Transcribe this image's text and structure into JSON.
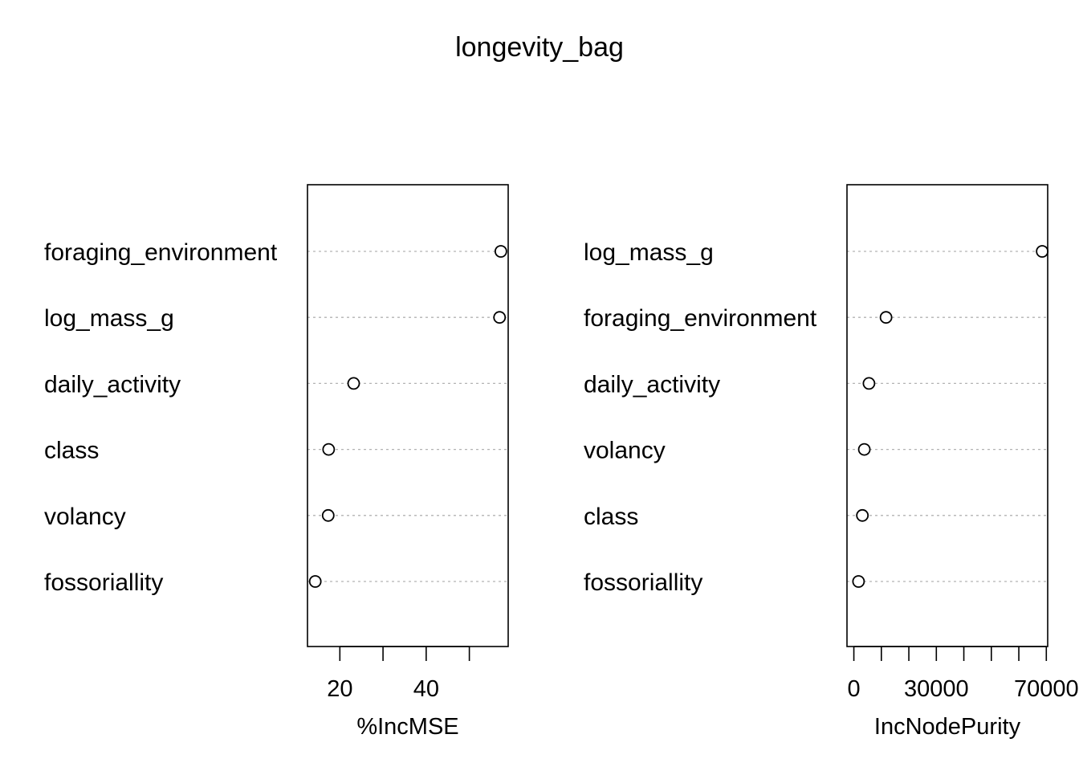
{
  "title": "longevity_bag",
  "chart_data": [
    {
      "type": "scatter",
      "subtype": "dotchart",
      "title": "",
      "xlabel": "%IncMSE",
      "ylabel": "",
      "xlim": [
        12.5,
        59
      ],
      "xticks": [
        20,
        30,
        40,
        50
      ],
      "xtick_labels": [
        "20",
        "",
        "40",
        ""
      ],
      "grid": "dotted horizontal guide lines",
      "categories": [
        "foraging_environment",
        "log_mass_g",
        "daily_activity",
        "class",
        "volancy",
        "fossoriallity"
      ],
      "values": [
        57.3,
        57.0,
        23.2,
        17.4,
        17.3,
        14.3
      ]
    },
    {
      "type": "scatter",
      "subtype": "dotchart",
      "title": "",
      "xlabel": "IncNodePurity",
      "ylabel": "",
      "xlim": [
        -2500,
        70500
      ],
      "xticks": [
        0,
        10000,
        20000,
        30000,
        40000,
        50000,
        60000,
        70000
      ],
      "xtick_labels": [
        "0",
        "",
        "",
        "30000",
        "",
        "",
        "",
        "70000"
      ],
      "grid": "dotted horizontal guide lines",
      "categories": [
        "log_mass_g",
        "foraging_environment",
        "daily_activity",
        "volancy",
        "class",
        "fossoriallity"
      ],
      "values": [
        68500,
        11700,
        5500,
        3800,
        3100,
        1700
      ]
    }
  ]
}
